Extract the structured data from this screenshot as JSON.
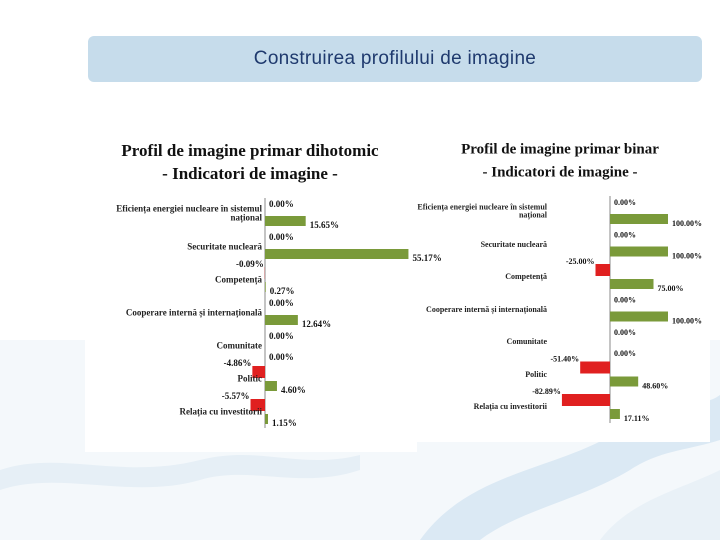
{
  "header": {
    "title": "Construirea profilului de imagine"
  },
  "chart_data": [
    {
      "type": "bar",
      "orientation": "horizontal",
      "title": "Profil de imagine primar dihotomic",
      "subtitle": "- Indicatori de imagine -",
      "categories": [
        "Eficiența energiei nucleare în sistemul național",
        "Securitate nucleară",
        "Competență",
        "Cooperare internă și internațională",
        "Comunitate",
        "Politic",
        "Relația cu investitorii"
      ],
      "series": [
        {
          "color": "#e02020",
          "values": [
            0.0,
            0.0,
            -0.09,
            0.0,
            0.0,
            -4.86,
            -5.57
          ],
          "value_labels": [
            "0.00%",
            "0.00%",
            "-0.09%",
            "0.00%",
            "0.00%",
            "-4.86%",
            "-5.57%"
          ]
        },
        {
          "color": "#7a9a3a",
          "values": [
            15.65,
            55.17,
            0.27,
            12.64,
            0.0,
            4.6,
            1.15
          ],
          "value_labels": [
            "15.65%",
            "55.17%",
            "0.27%",
            "12.64%",
            "0.00%",
            "4.60%",
            "1.15%"
          ]
        }
      ]
    },
    {
      "type": "bar",
      "orientation": "horizontal",
      "title": "Profil de imagine primar binar",
      "subtitle": "- Indicatori de imagine -",
      "categories": [
        "Eficiența energiei nucleare în sistemul național",
        "Securitate nucleară",
        "Competență",
        "Cooperare internă și internațională",
        "Comunitate",
        "Politic",
        "Relația cu investitorii"
      ],
      "series": [
        {
          "color": "#e02020",
          "values": [
            0.0,
            0.0,
            -25.0,
            0.0,
            0.0,
            -51.4,
            -82.89
          ],
          "value_labels": [
            "0.00%",
            "0.00%",
            "-25.00%",
            "0.00%",
            "0.00%",
            "-51.40%",
            "-82.89%"
          ]
        },
        {
          "color": "#7a9a3a",
          "values": [
            100.0,
            100.0,
            75.0,
            100.0,
            0.0,
            48.6,
            17.11
          ],
          "value_labels": [
            "100.00%",
            "100.00%",
            "75.00%",
            "100.00%",
            "0.00%",
            "48.60%",
            "17.11%"
          ]
        }
      ]
    }
  ]
}
